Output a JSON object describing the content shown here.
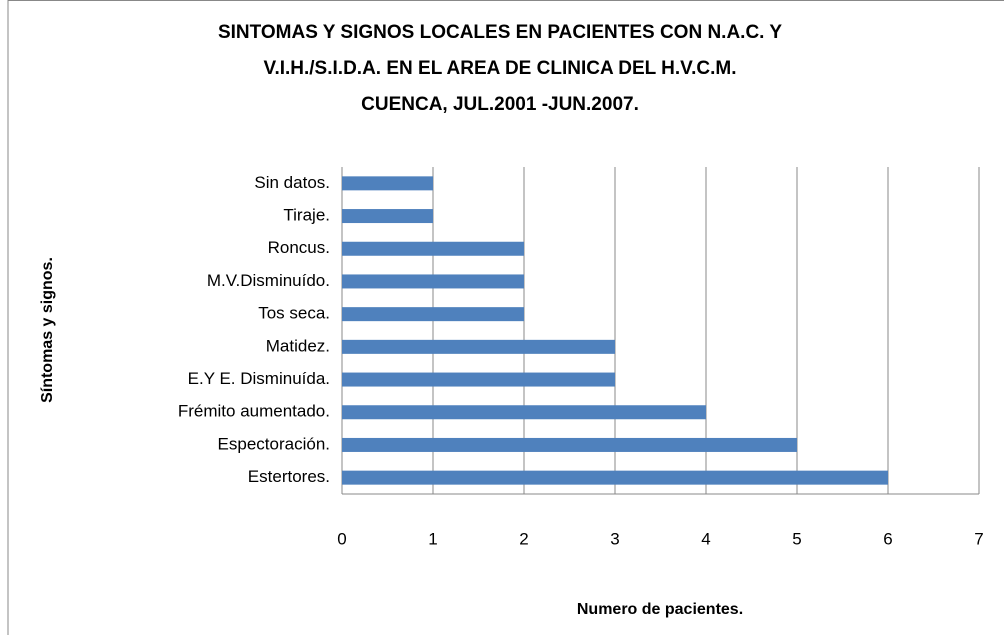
{
  "chart_data": {
    "type": "barh",
    "title": [
      "SINTOMAS Y SIGNOS LOCALES EN PACIENTES CON N.A.C. Y",
      "V.I.H./S.I.D.A. EN EL AREA DE CLINICA DEL H.V.C.M.",
      "CUENCA, JUL.2001 -JUN.2007."
    ],
    "x_label": "Numero de pacientes.",
    "y_label": "Síntomas y signos.",
    "categories": [
      "Sin datos.",
      "Tiraje.",
      "Roncus.",
      "M.V.Disminuído.",
      "Tos seca.",
      "Matidez.",
      "E.Y E. Disminuída.",
      "Frémito aumentado.",
      "Espectoración.",
      "Estertores."
    ],
    "values": [
      1,
      1,
      2,
      2,
      2,
      3,
      3,
      4,
      5,
      6
    ],
    "color": "#4f81bd",
    "xlim": [
      0,
      7
    ],
    "xticks": [
      0,
      1,
      2,
      3,
      4,
      5,
      6,
      7
    ],
    "grid": true
  }
}
